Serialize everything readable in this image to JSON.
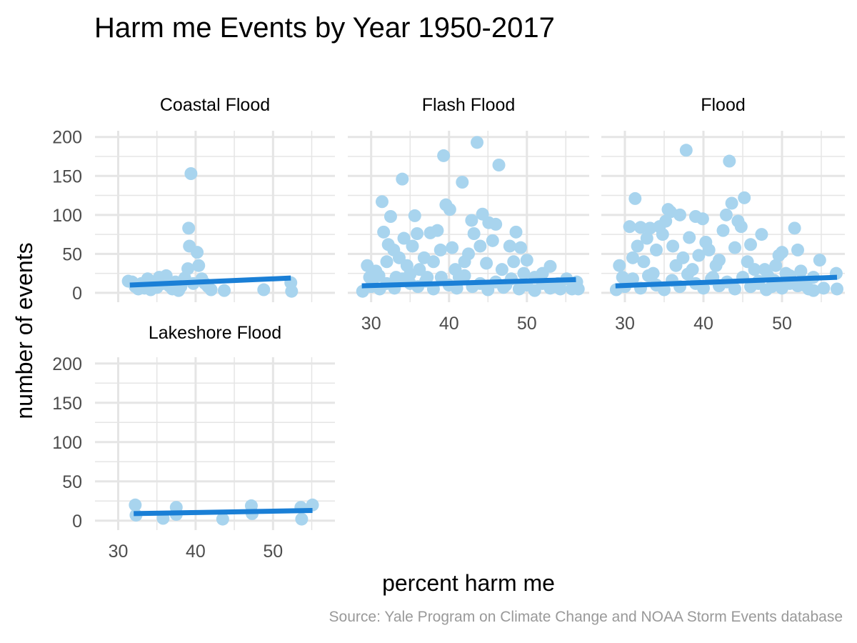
{
  "chart_data": {
    "type": "scatter",
    "title": "Harm me Events by Year 1950-2017",
    "xlabel": "percent harm me",
    "ylabel": "number of events",
    "caption": "Source: Yale Program on Climate Change and NOAA Storm Events database",
    "y_ticks": [
      0,
      50,
      100,
      150,
      200
    ],
    "ylim": [
      -12,
      208
    ],
    "xlim": [
      27,
      58
    ],
    "x_ticks": [
      30,
      40,
      50
    ],
    "grid": true,
    "colors": {
      "points": "#a8d4ee",
      "trend": "#1a7fd6",
      "grid": "#e5e5e5",
      "text": "#000000",
      "tick_text": "#4d4d4d",
      "caption": "#999999"
    },
    "panels": [
      {
        "label": "Coastal Flood",
        "trend": [
          [
            31.5,
            10
          ],
          [
            52.3,
            19
          ]
        ],
        "points": [
          [
            31.3,
            15
          ],
          [
            31.8,
            14
          ],
          [
            32.2,
            8
          ],
          [
            32.6,
            5
          ],
          [
            33.0,
            12
          ],
          [
            33.4,
            6
          ],
          [
            33.8,
            18
          ],
          [
            34.2,
            4
          ],
          [
            34.6,
            10
          ],
          [
            35.0,
            7
          ],
          [
            35.3,
            20
          ],
          [
            35.8,
            12
          ],
          [
            36.2,
            22
          ],
          [
            36.6,
            9
          ],
          [
            37.0,
            5
          ],
          [
            37.4,
            14
          ],
          [
            37.8,
            3
          ],
          [
            38.1,
            8
          ],
          [
            38.6,
            19
          ],
          [
            39.0,
            31
          ],
          [
            39.1,
            83
          ],
          [
            39.2,
            60
          ],
          [
            39.4,
            153
          ],
          [
            39.7,
            12
          ],
          [
            40.2,
            52
          ],
          [
            40.4,
            35
          ],
          [
            40.8,
            18
          ],
          [
            41.2,
            12
          ],
          [
            41.6,
            8
          ],
          [
            42.0,
            4
          ],
          [
            43.7,
            3
          ],
          [
            48.8,
            4
          ],
          [
            52.3,
            13
          ],
          [
            52.4,
            2
          ]
        ]
      },
      {
        "label": "Flash Flood",
        "trend": [
          [
            28.8,
            9
          ],
          [
            56.3,
            17
          ]
        ],
        "points": [
          [
            28.9,
            2
          ],
          [
            29.5,
            35
          ],
          [
            29.8,
            20
          ],
          [
            30.2,
            10
          ],
          [
            30.6,
            28
          ],
          [
            31.1,
            5
          ],
          [
            31.4,
            117
          ],
          [
            31.6,
            78
          ],
          [
            32.0,
            40
          ],
          [
            32.2,
            62
          ],
          [
            32.5,
            98
          ],
          [
            32.9,
            55
          ],
          [
            33.2,
            20
          ],
          [
            33.6,
            45
          ],
          [
            34.0,
            146
          ],
          [
            34.2,
            70
          ],
          [
            34.6,
            35
          ],
          [
            35.0,
            12
          ],
          [
            35.3,
            60
          ],
          [
            35.6,
            99
          ],
          [
            35.9,
            76
          ],
          [
            36.2,
            30
          ],
          [
            36.8,
            45
          ],
          [
            37.2,
            20
          ],
          [
            37.6,
            77
          ],
          [
            38.0,
            40
          ],
          [
            38.5,
            80
          ],
          [
            38.9,
            55
          ],
          [
            39.3,
            176
          ],
          [
            39.6,
            113
          ],
          [
            40.1,
            107
          ],
          [
            40.4,
            58
          ],
          [
            40.8,
            30
          ],
          [
            41.3,
            20
          ],
          [
            41.7,
            142
          ],
          [
            42.0,
            40
          ],
          [
            42.5,
            50
          ],
          [
            42.9,
            93
          ],
          [
            43.2,
            76
          ],
          [
            43.6,
            193
          ],
          [
            44.0,
            60
          ],
          [
            44.3,
            101
          ],
          [
            44.8,
            38
          ],
          [
            45.1,
            90
          ],
          [
            45.6,
            67
          ],
          [
            46.0,
            88
          ],
          [
            46.4,
            164
          ],
          [
            46.8,
            30
          ],
          [
            47.3,
            10
          ],
          [
            47.8,
            60
          ],
          [
            48.3,
            40
          ],
          [
            48.6,
            78
          ],
          [
            49.2,
            58
          ],
          [
            49.6,
            25
          ],
          [
            50.0,
            42
          ],
          [
            51.0,
            20
          ],
          [
            52.0,
            12
          ],
          [
            53.0,
            34
          ],
          [
            53.5,
            8
          ],
          [
            54.3,
            5
          ],
          [
            55.1,
            18
          ],
          [
            55.8,
            5
          ],
          [
            56.4,
            14
          ],
          [
            56.6,
            5
          ],
          [
            30.0,
            8
          ],
          [
            31.0,
            22
          ],
          [
            32.0,
            12
          ],
          [
            33.0,
            6
          ],
          [
            34.0,
            18
          ],
          [
            35.0,
            24
          ],
          [
            36.0,
            8
          ],
          [
            37.0,
            15
          ],
          [
            38.0,
            5
          ],
          [
            39.0,
            20
          ],
          [
            40.0,
            10
          ],
          [
            41.0,
            6
          ],
          [
            42.0,
            22
          ],
          [
            43.0,
            8
          ],
          [
            44.0,
            12
          ],
          [
            45.0,
            4
          ],
          [
            46.0,
            14
          ],
          [
            47.0,
            7
          ],
          [
            48.0,
            18
          ],
          [
            49.0,
            5
          ],
          [
            50.0,
            10
          ],
          [
            51.0,
            3
          ],
          [
            52.0,
            25
          ],
          [
            53.0,
            6
          ],
          [
            54.0,
            12
          ]
        ]
      },
      {
        "label": "Flood",
        "trend": [
          [
            28.8,
            9
          ],
          [
            57.0,
            20
          ]
        ],
        "points": [
          [
            28.9,
            4
          ],
          [
            29.3,
            35
          ],
          [
            29.7,
            20
          ],
          [
            30.2,
            12
          ],
          [
            30.6,
            85
          ],
          [
            31.0,
            45
          ],
          [
            31.3,
            121
          ],
          [
            31.6,
            60
          ],
          [
            32.0,
            84
          ],
          [
            32.4,
            40
          ],
          [
            32.8,
            70
          ],
          [
            33.2,
            83
          ],
          [
            33.6,
            25
          ],
          [
            34.0,
            55
          ],
          [
            34.4,
            85
          ],
          [
            34.8,
            75
          ],
          [
            35.2,
            92
          ],
          [
            35.5,
            107
          ],
          [
            35.8,
            104
          ],
          [
            36.1,
            60
          ],
          [
            36.5,
            35
          ],
          [
            37.0,
            100
          ],
          [
            37.4,
            45
          ],
          [
            37.8,
            183
          ],
          [
            38.2,
            71
          ],
          [
            38.6,
            30
          ],
          [
            39.0,
            98
          ],
          [
            39.4,
            48
          ],
          [
            39.9,
            95
          ],
          [
            40.3,
            65
          ],
          [
            40.7,
            55
          ],
          [
            41.2,
            20
          ],
          [
            41.6,
            35
          ],
          [
            42.0,
            42
          ],
          [
            42.5,
            80
          ],
          [
            42.9,
            100
          ],
          [
            43.3,
            169
          ],
          [
            43.6,
            115
          ],
          [
            44.0,
            58
          ],
          [
            44.4,
            92
          ],
          [
            44.8,
            85
          ],
          [
            45.2,
            122
          ],
          [
            45.6,
            40
          ],
          [
            46.0,
            62
          ],
          [
            46.5,
            30
          ],
          [
            47.0,
            15
          ],
          [
            47.4,
            75
          ],
          [
            47.8,
            30
          ],
          [
            48.2,
            22
          ],
          [
            48.7,
            8
          ],
          [
            49.2,
            35
          ],
          [
            49.6,
            48
          ],
          [
            50.0,
            52
          ],
          [
            50.5,
            25
          ],
          [
            51.0,
            12
          ],
          [
            51.6,
            83
          ],
          [
            52.0,
            55
          ],
          [
            52.4,
            28
          ],
          [
            52.8,
            10
          ],
          [
            53.4,
            5
          ],
          [
            54.0,
            3
          ],
          [
            54.8,
            42
          ],
          [
            55.3,
            6
          ],
          [
            56.9,
            25
          ],
          [
            57.0,
            5
          ],
          [
            30.0,
            8
          ],
          [
            31.0,
            18
          ],
          [
            32.0,
            6
          ],
          [
            33.0,
            22
          ],
          [
            34.0,
            10
          ],
          [
            35.0,
            4
          ],
          [
            36.0,
            16
          ],
          [
            37.0,
            8
          ],
          [
            38.0,
            24
          ],
          [
            39.0,
            12
          ],
          [
            40.0,
            6
          ],
          [
            41.0,
            18
          ],
          [
            42.0,
            9
          ],
          [
            43.0,
            14
          ],
          [
            44.0,
            5
          ],
          [
            45.0,
            20
          ],
          [
            46.0,
            8
          ],
          [
            47.0,
            12
          ],
          [
            48.0,
            4
          ],
          [
            49.0,
            16
          ],
          [
            50.0,
            6
          ],
          [
            51.0,
            22
          ],
          [
            52.0,
            9
          ],
          [
            53.0,
            14
          ],
          [
            54.0,
            20
          ]
        ]
      },
      {
        "label": "Lakeshore Flood",
        "trend": [
          [
            32.0,
            9
          ],
          [
            55.1,
            13
          ]
        ],
        "points": [
          [
            32.2,
            20
          ],
          [
            32.3,
            7
          ],
          [
            35.8,
            3
          ],
          [
            37.5,
            17
          ],
          [
            37.5,
            8
          ],
          [
            43.5,
            2
          ],
          [
            47.2,
            19
          ],
          [
            47.3,
            9
          ],
          [
            53.6,
            17
          ],
          [
            53.7,
            2
          ],
          [
            55.1,
            20
          ]
        ]
      }
    ]
  }
}
